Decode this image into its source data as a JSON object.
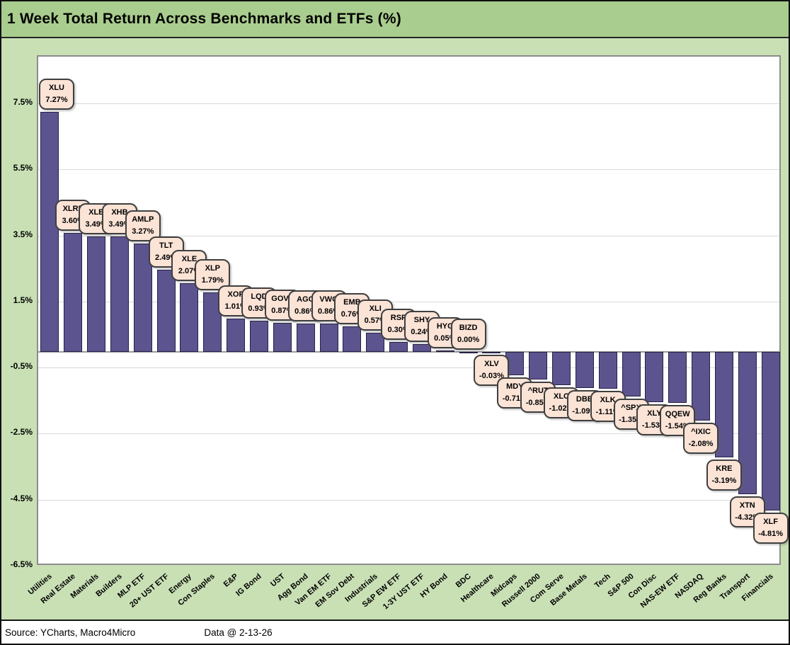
{
  "title": "1 Week Total Return Across Benchmarks and ETFs (%)",
  "footer": {
    "source": "Source: YCharts, Macro4Micro",
    "data_date": "Data @ 2-13-26"
  },
  "colors": {
    "header_bg": "#A9CD8E",
    "canvas_bg": "#C9E0B5",
    "plot_bg": "#FFFFFF",
    "bar": "#5C548F",
    "bar_border": "#262144",
    "callout_bg": "#FBE3D6",
    "callout_border": "#3F3F3F",
    "gridline": "#D9D9D9",
    "axis_line": "#9B9B9B"
  },
  "chart_data": {
    "type": "bar",
    "title": "1 Week Total Return Across Benchmarks and ETFs (%)",
    "xlabel": "",
    "ylabel": "",
    "ylim": [
      -6.5,
      8.8
    ],
    "grid": true,
    "legend_position": "none",
    "yticks": [
      {
        "value": 7.5,
        "label": "7.5%"
      },
      {
        "value": 5.5,
        "label": "5.5%"
      },
      {
        "value": 3.5,
        "label": "3.5%"
      },
      {
        "value": 1.5,
        "label": "1.5%"
      },
      {
        "value": -0.5,
        "label": "-0.5%"
      },
      {
        "value": -2.5,
        "label": "-2.5%"
      },
      {
        "value": -4.5,
        "label": "-4.5%"
      },
      {
        "value": -6.5,
        "label": "-6.5%"
      }
    ],
    "series_name": "1 Week Total Return (%)",
    "points": [
      {
        "category": "Utilities",
        "ticker": "XLU",
        "value": 7.27,
        "label": "7.27%"
      },
      {
        "category": "Real Estate",
        "ticker": "XLRE",
        "value": 3.6,
        "label": "3.60%"
      },
      {
        "category": "Materials",
        "ticker": "XLB",
        "value": 3.49,
        "label": "3.49%"
      },
      {
        "category": "Builders",
        "ticker": "XHB",
        "value": 3.49,
        "label": "3.49%"
      },
      {
        "category": "MLP ETF",
        "ticker": "AMLP",
        "value": 3.27,
        "label": "3.27%"
      },
      {
        "category": "20+ UST ETF",
        "ticker": "TLT",
        "value": 2.49,
        "label": "2.49%"
      },
      {
        "category": "Energy",
        "ticker": "XLE",
        "value": 2.07,
        "label": "2.07%"
      },
      {
        "category": "Con Staples",
        "ticker": "XLP",
        "value": 1.79,
        "label": "1.79%"
      },
      {
        "category": "E&P",
        "ticker": "XOP",
        "value": 1.01,
        "label": "1.01%"
      },
      {
        "category": "IG Bond",
        "ticker": "LQD",
        "value": 0.93,
        "label": "0.93%"
      },
      {
        "category": "UST",
        "ticker": "GOVT",
        "value": 0.87,
        "label": "0.87%"
      },
      {
        "category": "Agg Bond",
        "ticker": "AGG",
        "value": 0.86,
        "label": "0.86%"
      },
      {
        "category": "Van EM ETF",
        "ticker": "VWO",
        "value": 0.86,
        "label": "0.86%"
      },
      {
        "category": "EM Sov Debt",
        "ticker": "EMB",
        "value": 0.76,
        "label": "0.76%"
      },
      {
        "category": "Industrials",
        "ticker": "XLI",
        "value": 0.57,
        "label": "0.57%"
      },
      {
        "category": "S&P EW ETF",
        "ticker": "RSP",
        "value": 0.3,
        "label": "0.30%"
      },
      {
        "category": "1-3Y UST ETF",
        "ticker": "SHY",
        "value": 0.24,
        "label": "0.24%"
      },
      {
        "category": "HY Bond",
        "ticker": "HYG",
        "value": 0.05,
        "label": "0.05%"
      },
      {
        "category": "BDC",
        "ticker": "BIZD",
        "value": 0.0,
        "label": "0.00%"
      },
      {
        "category": "Healthcare",
        "ticker": "XLV",
        "value": -0.03,
        "label": "-0.03%"
      },
      {
        "category": "Midcaps",
        "ticker": "MDY",
        "value": -0.71,
        "label": "-0.71%"
      },
      {
        "category": "Russell 2000",
        "ticker": "^RUT",
        "value": -0.85,
        "label": "-0.85%"
      },
      {
        "category": "Com Serve",
        "ticker": "XLC",
        "value": -1.02,
        "label": "-1.02%"
      },
      {
        "category": "Base Metals",
        "ticker": "DBB",
        "value": -1.09,
        "label": "-1.09%"
      },
      {
        "category": "Tech",
        "ticker": "XLK",
        "value": -1.11,
        "label": "-1.11%"
      },
      {
        "category": "S&P 500",
        "ticker": "^SPX",
        "value": -1.35,
        "label": "-1.35%"
      },
      {
        "category": "Con Disc",
        "ticker": "XLY",
        "value": -1.53,
        "label": "-1.53%"
      },
      {
        "category": "NAS-EW ETF",
        "ticker": "QQEW",
        "value": -1.54,
        "label": "-1.54%"
      },
      {
        "category": "NASDAQ",
        "ticker": "^IXIC",
        "value": -2.08,
        "label": "-2.08%"
      },
      {
        "category": "Reg Banks",
        "ticker": "KRE",
        "value": -3.19,
        "label": "-3.19%"
      },
      {
        "category": "Transport",
        "ticker": "XTN",
        "value": -4.32,
        "label": "-4.32%"
      },
      {
        "category": "Financials",
        "ticker": "XLF",
        "value": -4.81,
        "label": "-4.81%"
      }
    ]
  }
}
